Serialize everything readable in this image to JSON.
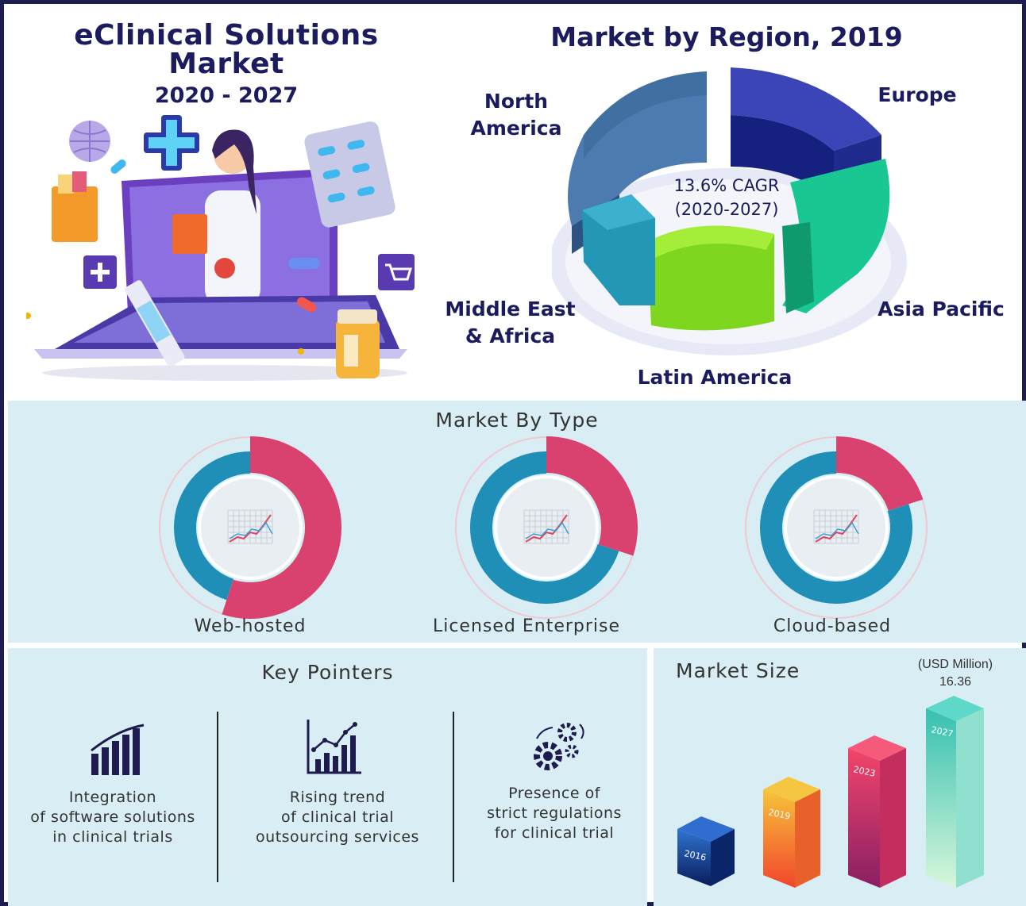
{
  "title": {
    "line1": "eClinical Solutions",
    "line2": "Market",
    "years": "2020 - 2027"
  },
  "region": {
    "title": "Market by Region, 2019",
    "cagr_line1": "13.6% CAGR",
    "cagr_line2": "(2020-2027)",
    "labels": {
      "north_america_1": "North",
      "north_america_2": "America",
      "europe": "Europe",
      "asia_pacific": "Asia Pacific",
      "latin_america": "Latin America",
      "mea_1": "Middle East",
      "mea_2": "& Africa"
    },
    "colors": {
      "north_america": "#3f6d9c",
      "europe": "#2a2e9a",
      "asia_pacific": "#16c78f",
      "latin_america": "#7ed321",
      "mea": "#1f8fb0"
    }
  },
  "market_by_type": {
    "title": "Market By Type",
    "items": [
      {
        "label": "Web-hosted",
        "pink_share": 0.55
      },
      {
        "label": "Licensed Enterprise",
        "pink_share": 0.3
      },
      {
        "label": "Cloud-based",
        "pink_share": 0.2
      }
    ],
    "colors": {
      "pink": "#d9416e",
      "blue": "#1f8fb8"
    }
  },
  "key_pointers": {
    "title": "Key Pointers",
    "items": [
      {
        "icon": "bar-chart-icon",
        "lines": [
          "Integration",
          "of software solutions",
          "in clinical trials"
        ]
      },
      {
        "icon": "trend-chart-icon",
        "lines": [
          "Rising trend",
          "of clinical trial",
          "outsourcing services"
        ]
      },
      {
        "icon": "gears-icon",
        "lines": [
          "Presence of",
          "strict regulations",
          "for clinical trial"
        ]
      }
    ]
  },
  "market_size": {
    "title": "Market Size",
    "unit": "(USD Million)",
    "value_label": "16.36",
    "bars": [
      {
        "year": "2016"
      },
      {
        "year": "2019"
      },
      {
        "year": "2023"
      },
      {
        "year": "2027"
      }
    ]
  }
}
